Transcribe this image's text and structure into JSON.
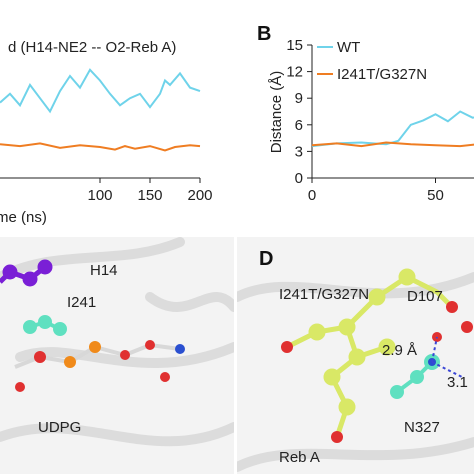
{
  "chart_data": [
    {
      "type": "line",
      "panel": "A",
      "title": "d (H14-NE2 -- O2-Reb A)",
      "xlabel": "Time (ns)",
      "ylabel": "",
      "xlim": [
        0,
        200
      ],
      "ylim": [
        0,
        15
      ],
      "x_ticks": [
        100,
        150,
        200
      ],
      "series": [
        {
          "name": "WT",
          "color": "#6fd3ea",
          "points": [
            [
              0,
              8.5
            ],
            [
              10,
              9.5
            ],
            [
              20,
              8.2
            ],
            [
              30,
              10.5
            ],
            [
              40,
              9.0
            ],
            [
              50,
              7.5
            ],
            [
              60,
              9.8
            ],
            [
              70,
              11.5
            ],
            [
              80,
              10.2
            ],
            [
              90,
              12.2
            ],
            [
              100,
              11.0
            ],
            [
              110,
              9.5
            ],
            [
              120,
              8.2
            ],
            [
              130,
              9.0
            ],
            [
              140,
              9.5
            ],
            [
              150,
              8.0
            ],
            [
              160,
              9.5
            ],
            [
              165,
              11.0
            ],
            [
              170,
              10.5
            ],
            [
              180,
              11.8
            ],
            [
              190,
              10.2
            ],
            [
              200,
              9.8
            ]
          ]
        },
        {
          "name": "I241T/G327N",
          "color": "#ef7d22",
          "points": [
            [
              0,
              3.8
            ],
            [
              20,
              3.6
            ],
            [
              40,
              3.9
            ],
            [
              60,
              3.4
            ],
            [
              80,
              3.7
            ],
            [
              100,
              3.5
            ],
            [
              115,
              3.2
            ],
            [
              125,
              3.6
            ],
            [
              135,
              3.3
            ],
            [
              150,
              3.6
            ],
            [
              165,
              3.1
            ],
            [
              175,
              3.5
            ],
            [
              190,
              3.7
            ],
            [
              200,
              3.6
            ]
          ]
        }
      ]
    },
    {
      "type": "line",
      "panel": "B",
      "title": "",
      "xlabel": "",
      "ylabel": "Distance (Å)",
      "xlim": [
        0,
        100
      ],
      "ylim": [
        0,
        15
      ],
      "x_ticks": [
        0,
        50
      ],
      "y_ticks": [
        0,
        3,
        6,
        9,
        12,
        15
      ],
      "legend": "top-left",
      "series": [
        {
          "name": "WT",
          "color": "#6fd3ea",
          "points": [
            [
              0,
              3.6
            ],
            [
              10,
              3.9
            ],
            [
              20,
              4.0
            ],
            [
              30,
              3.8
            ],
            [
              35,
              4.2
            ],
            [
              40,
              6.0
            ],
            [
              45,
              6.5
            ],
            [
              50,
              7.2
            ],
            [
              55,
              6.4
            ],
            [
              60,
              7.5
            ],
            [
              65,
              6.8
            ],
            [
              70,
              7.0
            ],
            [
              75,
              6.5
            ],
            [
              80,
              7.2
            ],
            [
              85,
              6.6
            ]
          ]
        },
        {
          "name": "I241T/G327N",
          "color": "#ef7d22",
          "points": [
            [
              0,
              3.7
            ],
            [
              10,
              3.9
            ],
            [
              20,
              3.6
            ],
            [
              30,
              4.0
            ],
            [
              40,
              3.8
            ],
            [
              50,
              3.7
            ],
            [
              60,
              3.6
            ],
            [
              70,
              3.9
            ],
            [
              80,
              3.7
            ],
            [
              85,
              3.8
            ]
          ]
        }
      ]
    }
  ],
  "panels": {
    "A": {
      "title": "d (H14-NE2 -- O2-Reb A)",
      "x_partial_label": "me (ns)"
    },
    "B": {
      "letter": "B"
    },
    "C": {
      "labels": [
        "H14",
        "I241",
        "UDPG"
      ]
    },
    "D": {
      "letter": "D",
      "title": "I241T/G327N",
      "labels": [
        "D107",
        "2.9 Å",
        "3.1",
        "N327",
        "Reb A"
      ]
    }
  }
}
